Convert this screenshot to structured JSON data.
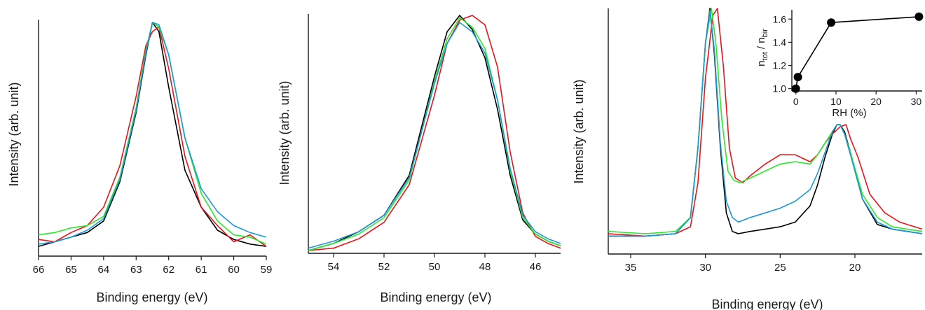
{
  "colors": {
    "black": "#000000",
    "red": "#e8141a",
    "green": "#2ee82e",
    "blue": "#1a9ad6"
  },
  "chart_data": [
    {
      "type": "line",
      "xlabel": "Binding energy (eV)",
      "ylabel": "Intensity (arb. unit)",
      "xlim": [
        66,
        59
      ],
      "x_reversed": true,
      "x_ticks": [
        "66",
        "65",
        "64",
        "63",
        "62",
        "61",
        "60",
        "59"
      ],
      "y_ticks_shown": false,
      "peak": 62.5,
      "series": [
        {
          "color": "black",
          "x": [
            66,
            65.5,
            65,
            64.5,
            64,
            63.5,
            63,
            62.7,
            62.5,
            62.3,
            62,
            61.5,
            61,
            60.5,
            60,
            59.5,
            59
          ],
          "y": [
            0.03,
            0.05,
            0.07,
            0.09,
            0.14,
            0.31,
            0.61,
            0.86,
            1.0,
            0.96,
            0.72,
            0.36,
            0.2,
            0.1,
            0.06,
            0.04,
            0.03
          ]
        },
        {
          "color": "red",
          "x": [
            66,
            65.5,
            65,
            64.5,
            64,
            63.5,
            63,
            62.7,
            62.5,
            62.3,
            62,
            61.5,
            61,
            60.5,
            60,
            59.5,
            59
          ],
          "y": [
            0.06,
            0.05,
            0.09,
            0.12,
            0.2,
            0.38,
            0.68,
            0.9,
            0.96,
            0.98,
            0.8,
            0.42,
            0.2,
            0.12,
            0.05,
            0.08,
            0.03
          ]
        },
        {
          "color": "green",
          "x": [
            66,
            65.5,
            65,
            64.5,
            64,
            63.5,
            63,
            62.7,
            62.5,
            62.3,
            62,
            61.5,
            61,
            60.5,
            60,
            59.5,
            59
          ],
          "y": [
            0.08,
            0.09,
            0.11,
            0.12,
            0.16,
            0.33,
            0.63,
            0.88,
            1.0,
            0.98,
            0.86,
            0.5,
            0.26,
            0.14,
            0.08,
            0.07,
            0.04
          ]
        },
        {
          "color": "blue",
          "x": [
            66,
            65.5,
            65,
            64.5,
            64,
            63.5,
            63,
            62.7,
            62.5,
            62.3,
            62,
            61.5,
            61,
            60.5,
            60,
            59.5,
            59
          ],
          "y": [
            0.04,
            0.05,
            0.07,
            0.1,
            0.15,
            0.32,
            0.62,
            0.87,
            1.0,
            0.99,
            0.86,
            0.5,
            0.28,
            0.18,
            0.12,
            0.09,
            0.07
          ]
        }
      ]
    },
    {
      "type": "line",
      "xlabel": "Binding energy (eV)",
      "ylabel": "Intensity (arb. unit)",
      "xlim": [
        55,
        45
      ],
      "x_reversed": true,
      "x_ticks": [
        "54",
        "52",
        "50",
        "48",
        "46"
      ],
      "y_ticks_shown": false,
      "peak": 49,
      "series": [
        {
          "color": "black",
          "x": [
            55,
            54,
            53,
            52,
            51,
            50,
            49.5,
            49,
            48.5,
            48,
            47.5,
            47,
            46.5,
            46,
            45.5,
            45
          ],
          "y": [
            0.0,
            0.03,
            0.08,
            0.15,
            0.32,
            0.74,
            0.93,
            1.0,
            0.94,
            0.82,
            0.6,
            0.32,
            0.13,
            0.07,
            0.04,
            0.02
          ]
        },
        {
          "color": "red",
          "x": [
            55,
            54,
            53,
            52,
            51,
            50,
            49.5,
            49,
            48.5,
            48,
            47.5,
            47,
            46.5,
            46,
            45.5,
            45
          ],
          "y": [
            0.0,
            0.01,
            0.05,
            0.12,
            0.28,
            0.66,
            0.88,
            0.98,
            1.0,
            0.96,
            0.78,
            0.42,
            0.16,
            0.06,
            0.03,
            0.01
          ]
        },
        {
          "color": "green",
          "x": [
            55,
            54,
            53,
            52,
            51,
            50,
            49.5,
            49,
            48.5,
            48,
            47.5,
            47,
            46.5,
            46,
            45.5,
            45
          ],
          "y": [
            0.0,
            0.03,
            0.07,
            0.14,
            0.3,
            0.72,
            0.9,
            0.99,
            0.95,
            0.86,
            0.64,
            0.34,
            0.14,
            0.07,
            0.04,
            0.02
          ]
        },
        {
          "color": "blue",
          "x": [
            55,
            54,
            53,
            52,
            51,
            50,
            49.5,
            49,
            48.5,
            48,
            47.5,
            47,
            46.5,
            46,
            45.5,
            45
          ],
          "y": [
            0.01,
            0.04,
            0.08,
            0.15,
            0.31,
            0.71,
            0.88,
            0.97,
            0.93,
            0.84,
            0.64,
            0.35,
            0.15,
            0.08,
            0.05,
            0.03
          ]
        }
      ]
    },
    {
      "type": "line",
      "xlabel": "Binding energy (eV)",
      "ylabel": "Intensity (arb. unit)",
      "xlim": [
        36.5,
        15.5
      ],
      "x_reversed": true,
      "x_ticks": [
        "35",
        "30",
        "25",
        "20"
      ],
      "y_ticks_shown": false,
      "series": [
        {
          "color": "black",
          "x": [
            36.5,
            34,
            32,
            31,
            30.5,
            30,
            29.7,
            29.4,
            29,
            28.6,
            28.2,
            27.8,
            27,
            26,
            25,
            24,
            23,
            22.5,
            22,
            21.5,
            21.2,
            21,
            20.7,
            20.3,
            19.5,
            18.5,
            17.5,
            16.5,
            15.5
          ],
          "y": [
            0.02,
            0.02,
            0.03,
            0.1,
            0.4,
            0.85,
            1.0,
            0.8,
            0.4,
            0.12,
            0.04,
            0.03,
            0.04,
            0.05,
            0.06,
            0.08,
            0.15,
            0.24,
            0.36,
            0.46,
            0.5,
            0.5,
            0.47,
            0.38,
            0.18,
            0.07,
            0.05,
            0.04,
            0.03
          ]
        },
        {
          "color": "red",
          "x": [
            36.5,
            34,
            32,
            31,
            30.5,
            30,
            29.5,
            29.2,
            28.8,
            28.4,
            28,
            27.5,
            27,
            26,
            25,
            24,
            23,
            22.5,
            22,
            21.5,
            21,
            20.6,
            20.3,
            19.8,
            19,
            18,
            17,
            16,
            15.5
          ],
          "y": [
            0.03,
            0.02,
            0.03,
            0.06,
            0.25,
            0.7,
            0.97,
            1.0,
            0.75,
            0.4,
            0.27,
            0.25,
            0.28,
            0.33,
            0.37,
            0.37,
            0.34,
            0.37,
            0.42,
            0.46,
            0.49,
            0.5,
            0.44,
            0.36,
            0.2,
            0.12,
            0.08,
            0.06,
            0.05
          ]
        },
        {
          "color": "green",
          "x": [
            36.5,
            34,
            32,
            31,
            30.5,
            30,
            29.6,
            29.3,
            28.9,
            28.5,
            28.1,
            27.7,
            27,
            26,
            25,
            24,
            23,
            22.5,
            22,
            21.5,
            21.2,
            21,
            20.7,
            20.3,
            19.5,
            18.5,
            17.5,
            16.5,
            15.5
          ],
          "y": [
            0.04,
            0.03,
            0.04,
            0.1,
            0.4,
            0.85,
            1.0,
            0.85,
            0.52,
            0.3,
            0.26,
            0.25,
            0.27,
            0.3,
            0.33,
            0.34,
            0.33,
            0.37,
            0.42,
            0.47,
            0.5,
            0.5,
            0.46,
            0.38,
            0.2,
            0.1,
            0.06,
            0.05,
            0.04
          ]
        },
        {
          "color": "blue",
          "x": [
            36.5,
            34,
            32,
            31,
            30.5,
            30,
            29.7,
            29.4,
            29,
            28.6,
            28.2,
            27.8,
            27,
            26,
            25,
            24,
            23,
            22.5,
            22,
            21.5,
            21.2,
            21,
            20.7,
            20.3,
            19.5,
            18.5,
            17.5,
            16.5,
            15.5
          ],
          "y": [
            0.02,
            0.02,
            0.03,
            0.1,
            0.4,
            0.85,
            0.99,
            0.82,
            0.42,
            0.17,
            0.1,
            0.08,
            0.1,
            0.12,
            0.14,
            0.17,
            0.22,
            0.29,
            0.38,
            0.47,
            0.5,
            0.5,
            0.46,
            0.37,
            0.18,
            0.08,
            0.05,
            0.04,
            0.03
          ]
        }
      ],
      "inset": {
        "type": "scatter",
        "xlabel": "RH (%)",
        "ylabel_main": "n",
        "ylabel_sub1": "tot",
        "ylabel_sep": " / n",
        "ylabel_sub2": "bir",
        "xlim": [
          -1,
          31.5
        ],
        "ylim": [
          0.98,
          1.68
        ],
        "x_ticks": [
          "0",
          "10",
          "20",
          "30"
        ],
        "y_ticks": [
          "1.0",
          "1.2",
          "1.4",
          "1.6"
        ],
        "x": [
          0,
          0.5,
          8.8,
          30.7
        ],
        "y": [
          1.0,
          1.1,
          1.57,
          1.62
        ],
        "connected": true
      }
    }
  ]
}
